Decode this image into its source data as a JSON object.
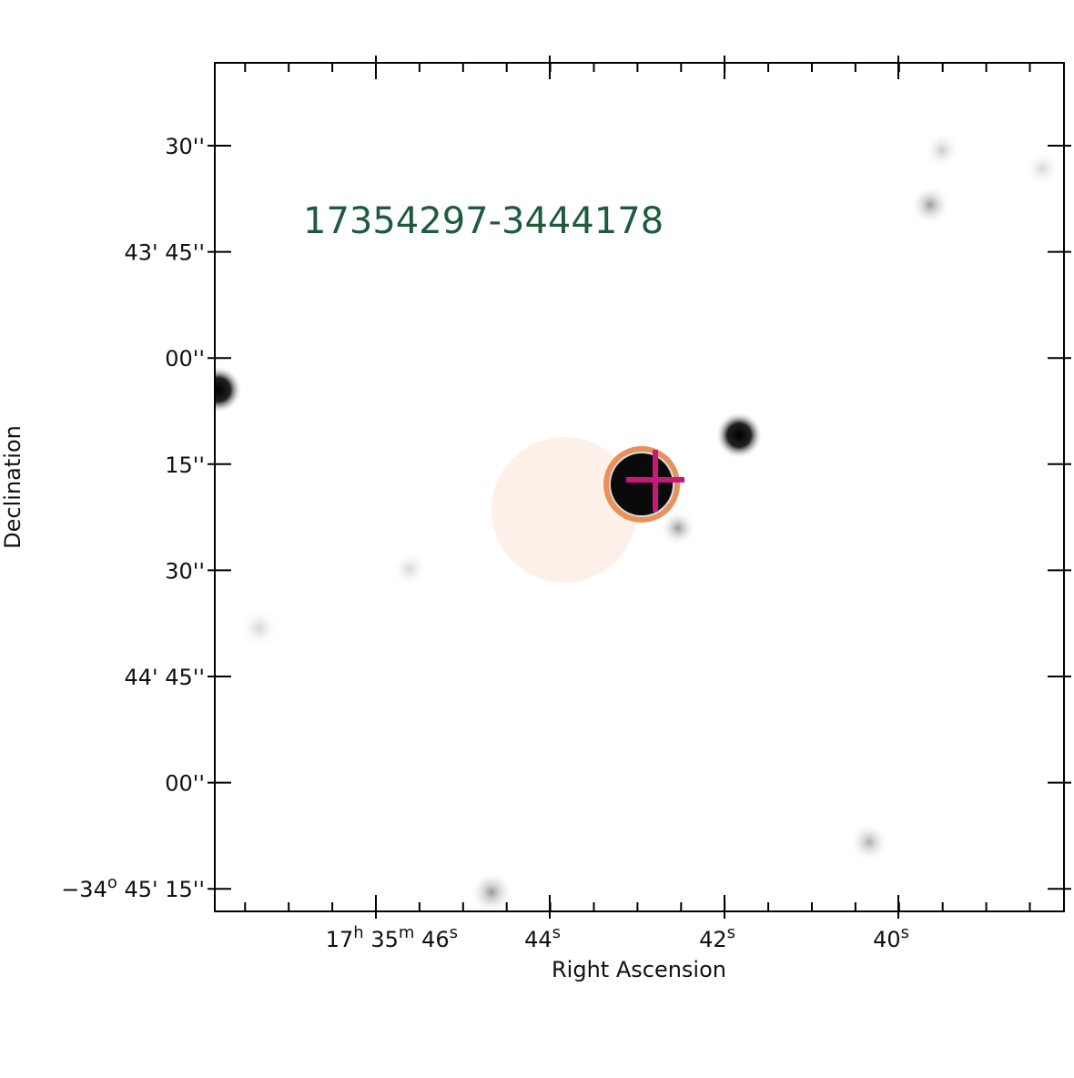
{
  "title": "17354297-3444178",
  "x_axis": {
    "label": "Right Ascension",
    "ticks": [
      [
        "17",
        "h",
        " 35",
        "m",
        " 46",
        "s"
      ],
      [
        "44",
        "s"
      ],
      [
        "42",
        "s"
      ],
      [
        "40",
        "s"
      ]
    ]
  },
  "y_axis": {
    "label": "Declination",
    "ticks": [
      [
        "30''"
      ],
      [
        "43' 45''"
      ],
      [
        "00''"
      ],
      [
        "15''"
      ],
      [
        "30''"
      ],
      [
        "44' 45''"
      ],
      [
        "00''"
      ],
      [
        "−34",
        "o",
        " 45' 15''"
      ]
    ]
  }
}
